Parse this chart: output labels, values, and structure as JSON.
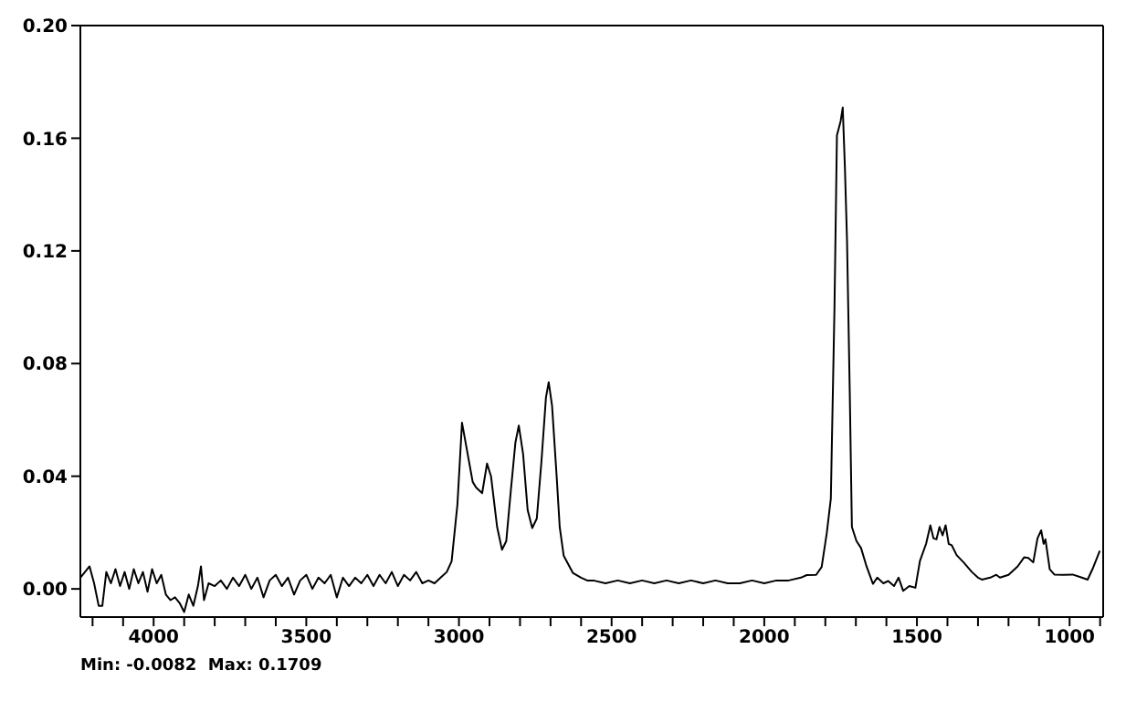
{
  "chart_data": {
    "type": "line",
    "xlim": [
      4240,
      890
    ],
    "ylim": [
      -0.01,
      0.2
    ],
    "xticks": [
      {
        "value": 4200,
        "label": null
      },
      {
        "value": 4100,
        "label": null
      },
      {
        "value": 4000,
        "label": "4000"
      },
      {
        "value": 3900,
        "label": null
      },
      {
        "value": 3800,
        "label": null
      },
      {
        "value": 3700,
        "label": null
      },
      {
        "value": 3600,
        "label": null
      },
      {
        "value": 3500,
        "label": "3500"
      },
      {
        "value": 3400,
        "label": null
      },
      {
        "value": 3300,
        "label": null
      },
      {
        "value": 3200,
        "label": null
      },
      {
        "value": 3100,
        "label": null
      },
      {
        "value": 3000,
        "label": "3000"
      },
      {
        "value": 2900,
        "label": null
      },
      {
        "value": 2800,
        "label": null
      },
      {
        "value": 2700,
        "label": null
      },
      {
        "value": 2600,
        "label": null
      },
      {
        "value": 2500,
        "label": "2500"
      },
      {
        "value": 2400,
        "label": null
      },
      {
        "value": 2300,
        "label": null
      },
      {
        "value": 2200,
        "label": null
      },
      {
        "value": 2100,
        "label": null
      },
      {
        "value": 2000,
        "label": "2000"
      },
      {
        "value": 1900,
        "label": null
      },
      {
        "value": 1800,
        "label": null
      },
      {
        "value": 1700,
        "label": null
      },
      {
        "value": 1600,
        "label": null
      },
      {
        "value": 1500,
        "label": "1500"
      },
      {
        "value": 1400,
        "label": null
      },
      {
        "value": 1300,
        "label": null
      },
      {
        "value": 1200,
        "label": null
      },
      {
        "value": 1100,
        "label": null
      },
      {
        "value": 1000,
        "label": "1000"
      },
      {
        "value": 900,
        "label": null
      }
    ],
    "yticks": [
      {
        "value": 0,
        "label": "0.00"
      },
      {
        "value": 0.04,
        "label": "0.04"
      },
      {
        "value": 0.08,
        "label": "0.08"
      },
      {
        "value": 0.12,
        "label": "0.12"
      },
      {
        "value": 0.16,
        "label": "0.16"
      },
      {
        "value": 0.2,
        "label": "0.20"
      }
    ],
    "annotations": [
      "Min: -0.0082  Max: 0.1709"
    ],
    "series": [
      {
        "color": "#000000",
        "x": [
          4240,
          4225,
          4210,
          4195,
          4180,
          4168,
          4155,
          4140,
          4125,
          4110,
          4095,
          4080,
          4065,
          4050,
          4035,
          4020,
          4005,
          3990,
          3975,
          3960,
          3945,
          3930,
          3915,
          3900,
          3885,
          3870,
          3855,
          3845,
          3835,
          3820,
          3800,
          3780,
          3760,
          3740,
          3720,
          3700,
          3680,
          3660,
          3640,
          3620,
          3600,
          3580,
          3560,
          3540,
          3520,
          3500,
          3480,
          3460,
          3440,
          3420,
          3400,
          3380,
          3360,
          3340,
          3320,
          3300,
          3280,
          3260,
          3240,
          3220,
          3200,
          3180,
          3160,
          3140,
          3120,
          3100,
          3080,
          3060,
          3040,
          3024,
          3005,
          2990,
          2975,
          2955,
          2944,
          2924,
          2908,
          2895,
          2875,
          2859,
          2845,
          2830,
          2815,
          2804,
          2790,
          2775,
          2760,
          2745,
          2730,
          2715,
          2706,
          2695,
          2680,
          2670,
          2657,
          2627,
          2600,
          2580,
          2560,
          2520,
          2480,
          2440,
          2400,
          2360,
          2320,
          2280,
          2240,
          2200,
          2160,
          2120,
          2080,
          2040,
          2000,
          1960,
          1920,
          1880,
          1861,
          1830,
          1812,
          1795,
          1782,
          1770,
          1762,
          1750,
          1743,
          1736,
          1729,
          1720,
          1713,
          1698,
          1683,
          1665,
          1644,
          1630,
          1610,
          1594,
          1575,
          1560,
          1545,
          1525,
          1505,
          1490,
          1470,
          1456,
          1446,
          1436,
          1426,
          1416,
          1406,
          1396,
          1386,
          1370,
          1347,
          1320,
          1300,
          1287,
          1260,
          1240,
          1228,
          1200,
          1170,
          1149,
          1135,
          1119,
          1105,
          1093,
          1085,
          1079,
          1065,
          1050,
          1020,
          990,
          960,
          941,
          925,
          901
        ],
        "values": [
          0.004,
          0.006,
          0.008,
          0.002,
          -0.006,
          -0.006,
          0.006,
          0.002,
          0.007,
          0.001,
          0.006,
          0.0,
          0.007,
          0.002,
          0.006,
          -0.001,
          0.007,
          0.002,
          0.005,
          -0.002,
          -0.004,
          -0.003,
          -0.005,
          -0.0082,
          -0.002,
          -0.006,
          0.001,
          0.008,
          -0.004,
          0.002,
          0.001,
          0.003,
          0.0,
          0.004,
          0.001,
          0.005,
          0.0,
          0.004,
          -0.003,
          0.003,
          0.005,
          0.001,
          0.004,
          -0.002,
          0.003,
          0.005,
          0.0,
          0.004,
          0.002,
          0.005,
          -0.003,
          0.004,
          0.001,
          0.004,
          0.002,
          0.005,
          0.001,
          0.005,
          0.002,
          0.006,
          0.001,
          0.005,
          0.003,
          0.006,
          0.002,
          0.003,
          0.002,
          0.004,
          0.006,
          0.0098,
          0.03,
          0.059,
          0.05,
          0.038,
          0.036,
          0.034,
          0.0445,
          0.04,
          0.022,
          0.0139,
          0.017,
          0.035,
          0.052,
          0.058,
          0.048,
          0.028,
          0.0216,
          0.025,
          0.045,
          0.068,
          0.0734,
          0.065,
          0.04,
          0.022,
          0.0118,
          0.0057,
          0.004,
          0.003,
          0.003,
          0.002,
          0.003,
          0.002,
          0.003,
          0.002,
          0.003,
          0.002,
          0.003,
          0.002,
          0.003,
          0.002,
          0.002,
          0.003,
          0.002,
          0.003,
          0.003,
          0.004,
          0.0049,
          0.005,
          0.0078,
          0.02,
          0.032,
          0.1,
          0.161,
          0.166,
          0.1709,
          0.15,
          0.124,
          0.07,
          0.022,
          0.017,
          0.0145,
          0.008,
          0.0018,
          0.004,
          0.002,
          0.0028,
          0.001,
          0.004,
          -0.0007,
          0.001,
          0.0004,
          0.01,
          0.016,
          0.0226,
          0.018,
          0.0176,
          0.022,
          0.019,
          0.0226,
          0.016,
          0.0155,
          0.012,
          0.0094,
          0.006,
          0.004,
          0.0033,
          0.004,
          0.005,
          0.004,
          0.005,
          0.008,
          0.0112,
          0.011,
          0.0094,
          0.018,
          0.0208,
          0.016,
          0.0176,
          0.007,
          0.0051,
          0.005,
          0.0051,
          0.004,
          0.0033,
          0.007,
          0.0135
        ]
      }
    ]
  }
}
